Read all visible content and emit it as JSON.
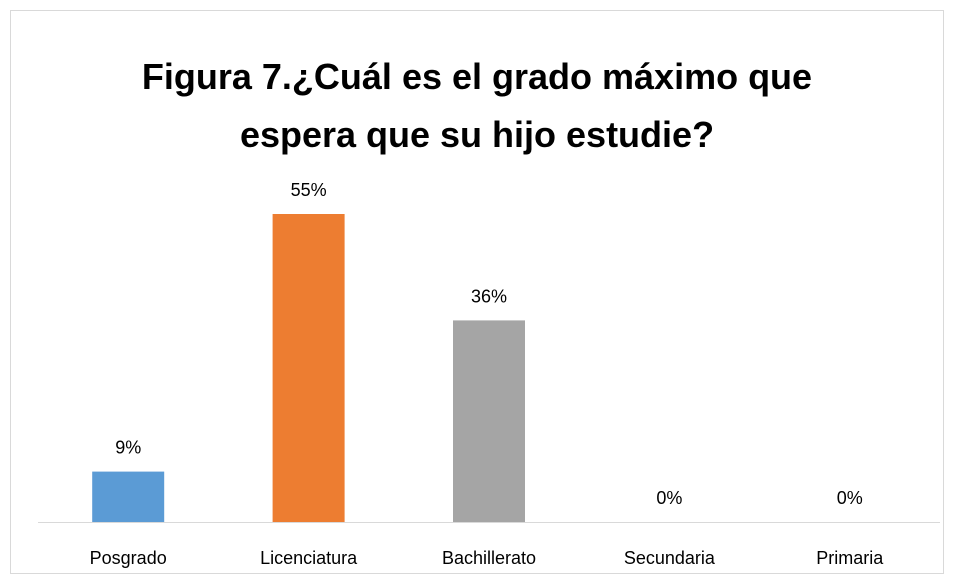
{
  "chart_data": {
    "type": "bar",
    "title": "Figura 7.¿Cuál es el grado máximo que espera que su hijo estudie?",
    "categories": [
      "Posgrado",
      "Licenciatura",
      "Bachillerato",
      "Secundaria",
      "Primaria"
    ],
    "values": [
      9,
      55,
      36,
      0,
      0
    ],
    "value_labels": [
      "9%",
      "55%",
      "36%",
      "0%",
      "0%"
    ],
    "colors": [
      "#5b9bd5",
      "#ed7d31",
      "#a5a5a5",
      "#ffc000",
      "#4472c4"
    ]
  }
}
